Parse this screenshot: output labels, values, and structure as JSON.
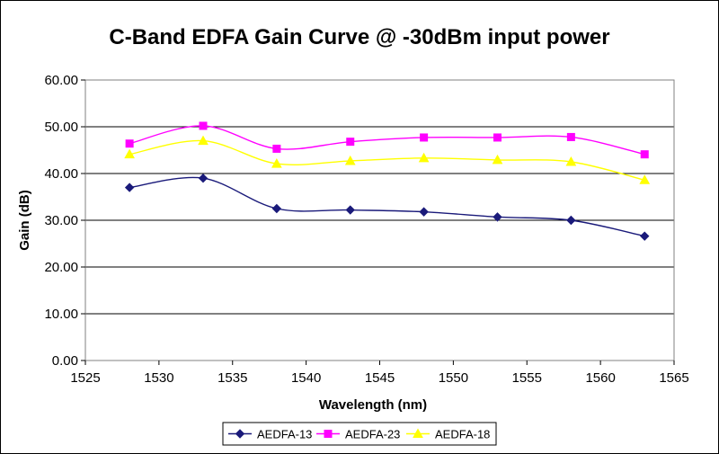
{
  "chart_data": {
    "type": "line",
    "title": "C-Band EDFA Gain Curve @ -30dBm input power",
    "xlabel": "Wavelength (nm)",
    "ylabel": "Gain (dB)",
    "xlim": [
      1525,
      1565
    ],
    "ylim": [
      0,
      60
    ],
    "xticks": [
      "1525",
      "1530",
      "1535",
      "1540",
      "1545",
      "1550",
      "1555",
      "1560",
      "1565"
    ],
    "yticks": [
      "0.00",
      "10.00",
      "20.00",
      "30.00",
      "40.00",
      "50.00",
      "60.00"
    ],
    "grid": "horizontal",
    "legend_position": "bottom",
    "x": [
      1528,
      1533,
      1538,
      1543,
      1548,
      1553,
      1558,
      1563
    ],
    "series": [
      {
        "name": "AEDFA-13",
        "color": "#1a1a7a",
        "marker": "diamond",
        "values": [
          37.0,
          39.0,
          32.5,
          32.2,
          31.8,
          30.7,
          30.0,
          26.6
        ]
      },
      {
        "name": "AEDFA-23",
        "color": "#ff00ff",
        "marker": "square",
        "values": [
          46.4,
          50.2,
          45.3,
          46.8,
          47.7,
          47.7,
          47.8,
          44.1
        ]
      },
      {
        "name": "AEDFA-18",
        "color": "#ffff00",
        "marker": "triangle",
        "values": [
          44.1,
          47.0,
          42.1,
          42.7,
          43.3,
          42.9,
          42.5,
          38.6
        ]
      }
    ]
  }
}
